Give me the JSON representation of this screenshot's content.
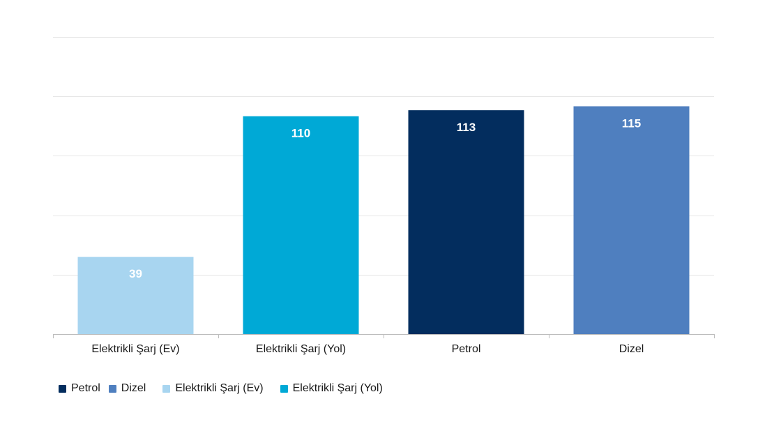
{
  "chart_data": {
    "type": "bar",
    "categories": [
      "Elektrikli Şarj (Ev)",
      "Elektrikli Şarj (Yol)",
      "Petrol",
      "Dizel"
    ],
    "values": [
      39,
      110,
      113,
      115
    ],
    "bar_colors": [
      "#a8d5f0",
      "#00a9d6",
      "#032d5e",
      "#4f7fbf"
    ],
    "data_labels": [
      "39",
      "110",
      "113",
      "115"
    ],
    "ylim": [
      0,
      150
    ],
    "grid": true,
    "title": "",
    "xlabel": "",
    "ylabel": ""
  },
  "legend": {
    "placement": "bottom-left",
    "items": [
      {
        "label": "Petrol",
        "color": "#032d5e"
      },
      {
        "label": "Dizel",
        "color": "#4f7fbf"
      },
      {
        "label": "Elektrikli Şarj (Ev)",
        "color": "#a8d5f0"
      },
      {
        "label": "Elektrikli Şarj (Yol)",
        "color": "#00a9d6"
      }
    ]
  },
  "colors": {
    "gridline": "#e6e6e6",
    "axis": "#bdbdbd",
    "data_label": "#ffffff",
    "tick_label": "#1a1a1a"
  }
}
